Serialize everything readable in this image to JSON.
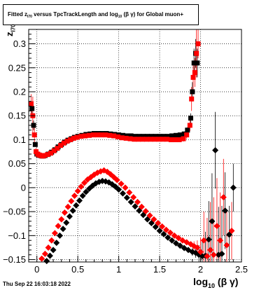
{
  "title": {
    "pre": "Fitted  z",
    "sub1": "I70",
    "mid": "  versus TpcTrackLength and log",
    "sub2": "10",
    "post": " (β  γ) for Global muon+"
  },
  "datestamp": "Thu Sep 22 16:03:18 2022",
  "xlabel": {
    "pre": "log",
    "sub": "10",
    "post": " (β γ)"
  },
  "ylabel": {
    "pre": "z",
    "sub": "I70"
  },
  "chart_data": {
    "type": "scatter",
    "xlim": [
      -0.1,
      2.5
    ],
    "ylim": [
      -0.155,
      0.33
    ],
    "grid": true,
    "xticks": [
      0,
      0.5,
      1,
      1.5,
      2,
      2.5
    ],
    "xtick_labels": [
      "0",
      "0.5",
      "1",
      "1.5",
      "2",
      "2.5"
    ],
    "yticks": [
      -0.15,
      -0.1,
      -0.05,
      0,
      0.05,
      0.1,
      0.15,
      0.2,
      0.25,
      0.3
    ],
    "ytick_labels": [
      "−0.15",
      "−0.1",
      "−0.05",
      "0",
      "0.05",
      "0.1",
      "0.15",
      "0.2",
      "0.25",
      "0.3"
    ],
    "series": [
      {
        "marker": "square",
        "color": "#000000",
        "x": [
          -0.06,
          -0.04,
          -0.02,
          0,
          0.02,
          0.04,
          0.06,
          0.08,
          0.1,
          0.14,
          0.18,
          0.22,
          0.26,
          0.3,
          0.34,
          0.38,
          0.42,
          0.46,
          0.5,
          0.55,
          0.6,
          0.65,
          0.7,
          0.75,
          0.8,
          0.85,
          0.9,
          0.95,
          1.0,
          1.05,
          1.1,
          1.15,
          1.2,
          1.25,
          1.3,
          1.35,
          1.4,
          1.45,
          1.5,
          1.55,
          1.6,
          1.65,
          1.7,
          1.75,
          1.8,
          1.84,
          1.88,
          1.9,
          1.92,
          1.94,
          1.96
        ],
        "y": [
          0.165,
          0.13,
          0.09,
          0.07,
          0.068,
          0.067,
          0.066,
          0.066,
          0.067,
          0.07,
          0.074,
          0.079,
          0.085,
          0.09,
          0.095,
          0.099,
          0.102,
          0.105,
          0.107,
          0.109,
          0.111,
          0.112,
          0.113,
          0.113,
          0.113,
          0.113,
          0.112,
          0.111,
          0.11,
          0.109,
          0.108,
          0.108,
          0.107,
          0.107,
          0.107,
          0.107,
          0.107,
          0.107,
          0.107,
          0.107,
          0.107,
          0.108,
          0.109,
          0.11,
          0.112,
          0.12,
          0.145,
          0.2,
          0.26,
          0.28,
          0.26
        ],
        "err": [
          0.01,
          0.01,
          0.005,
          0.003,
          0.002,
          0.002,
          0.002,
          0.002,
          0.002,
          0.002,
          0.002,
          0.002,
          0.002,
          0.002,
          0.002,
          0.002,
          0.002,
          0.002,
          0.002,
          0.002,
          0.002,
          0.002,
          0.002,
          0.002,
          0.002,
          0.002,
          0.002,
          0.002,
          0.002,
          0.002,
          0.002,
          0.002,
          0.002,
          0.002,
          0.002,
          0.002,
          0.002,
          0.002,
          0.002,
          0.002,
          0.003,
          0.003,
          0.004,
          0.004,
          0.005,
          0.006,
          0.01,
          0.02,
          0.03,
          0.03,
          0.03
        ]
      },
      {
        "marker": "square",
        "color": "#ff0000",
        "x": [
          -0.07,
          -0.05,
          -0.03,
          -0.01,
          0.01,
          0.03,
          0.05,
          0.07,
          0.09,
          0.13,
          0.17,
          0.21,
          0.25,
          0.29,
          0.33,
          0.37,
          0.41,
          0.45,
          0.49,
          0.54,
          0.59,
          0.64,
          0.69,
          0.74,
          0.79,
          0.84,
          0.89,
          0.94,
          0.99,
          1.04,
          1.09,
          1.14,
          1.19,
          1.24,
          1.29,
          1.34,
          1.39,
          1.44,
          1.49,
          1.54,
          1.59,
          1.64,
          1.69,
          1.74,
          1.79,
          1.83,
          1.87,
          1.89,
          1.91,
          1.93,
          1.95,
          1.97
        ],
        "y": [
          0.175,
          0.15,
          0.11,
          0.075,
          0.07,
          0.068,
          0.067,
          0.066,
          0.067,
          0.069,
          0.072,
          0.077,
          0.082,
          0.088,
          0.093,
          0.097,
          0.1,
          0.103,
          0.105,
          0.107,
          0.108,
          0.109,
          0.11,
          0.11,
          0.11,
          0.11,
          0.109,
          0.108,
          0.106,
          0.104,
          0.103,
          0.102,
          0.101,
          0.101,
          0.101,
          0.101,
          0.101,
          0.101,
          0.101,
          0.101,
          0.101,
          0.1,
          0.1,
          0.1,
          0.102,
          0.11,
          0.13,
          0.185,
          0.23,
          0.24,
          0.28,
          0.3
        ],
        "err": [
          0.02,
          0.04,
          0.02,
          0.008,
          0.003,
          0.002,
          0.002,
          0.002,
          0.002,
          0.002,
          0.002,
          0.002,
          0.002,
          0.002,
          0.002,
          0.002,
          0.002,
          0.002,
          0.002,
          0.002,
          0.002,
          0.002,
          0.002,
          0.002,
          0.002,
          0.002,
          0.002,
          0.002,
          0.002,
          0.002,
          0.002,
          0.002,
          0.002,
          0.002,
          0.002,
          0.002,
          0.002,
          0.002,
          0.002,
          0.002,
          0.003,
          0.003,
          0.004,
          0.004,
          0.006,
          0.008,
          0.012,
          0.025,
          0.03,
          0.03,
          0.05,
          0.03
        ]
      },
      {
        "marker": "diamond",
        "color": "#000000",
        "x": [
          0.12,
          0.16,
          0.2,
          0.24,
          0.28,
          0.32,
          0.36,
          0.4,
          0.44,
          0.48,
          0.52,
          0.56,
          0.6,
          0.64,
          0.68,
          0.72,
          0.76,
          0.8,
          0.84,
          0.88,
          0.92,
          0.96,
          1.0,
          1.05,
          1.1,
          1.15,
          1.2,
          1.25,
          1.3,
          1.35,
          1.4,
          1.45,
          1.5,
          1.55,
          1.6,
          1.65,
          1.7,
          1.75,
          1.8,
          1.85,
          1.9,
          1.94,
          1.98,
          2.02,
          2.06,
          2.1,
          2.14,
          2.18,
          2.22,
          2.26,
          2.3,
          2.35,
          2.4
        ],
        "y": [
          -0.153,
          -0.142,
          -0.13,
          -0.115,
          -0.1,
          -0.086,
          -0.073,
          -0.06,
          -0.048,
          -0.037,
          -0.027,
          -0.017,
          -0.009,
          -0.002,
          0.004,
          0.009,
          0.012,
          0.014,
          0.013,
          0.011,
          0.007,
          0.002,
          -0.004,
          -0.012,
          -0.021,
          -0.03,
          -0.039,
          -0.048,
          -0.057,
          -0.066,
          -0.074,
          -0.082,
          -0.09,
          -0.097,
          -0.104,
          -0.11,
          -0.116,
          -0.121,
          -0.126,
          -0.13,
          -0.134,
          -0.136,
          -0.14,
          -0.143,
          -0.142,
          -0.108,
          -0.07,
          0.078,
          -0.14,
          -0.138,
          -0.048,
          -0.098,
          0.0
        ],
        "err": [
          0.004,
          0.003,
          0.002,
          0.002,
          0.002,
          0.002,
          0.002,
          0.002,
          0.002,
          0.002,
          0.002,
          0.002,
          0.002,
          0.002,
          0.002,
          0.002,
          0.002,
          0.002,
          0.002,
          0.002,
          0.002,
          0.002,
          0.002,
          0.002,
          0.002,
          0.002,
          0.002,
          0.002,
          0.002,
          0.002,
          0.002,
          0.002,
          0.002,
          0.002,
          0.003,
          0.003,
          0.003,
          0.004,
          0.004,
          0.006,
          0.008,
          0.01,
          0.02,
          0.03,
          0.05,
          0.08,
          0.1,
          0.08,
          0.1,
          0.1,
          0.08,
          0.06,
          0.05
        ]
      },
      {
        "marker": "diamond",
        "color": "#ff0000",
        "x": [
          0.06,
          0.1,
          0.14,
          0.18,
          0.22,
          0.26,
          0.3,
          0.34,
          0.38,
          0.42,
          0.46,
          0.5,
          0.54,
          0.58,
          0.62,
          0.66,
          0.7,
          0.74,
          0.78,
          0.82,
          0.86,
          0.9,
          0.94,
          0.98,
          1.03,
          1.08,
          1.13,
          1.18,
          1.23,
          1.28,
          1.33,
          1.38,
          1.43,
          1.48,
          1.53,
          1.58,
          1.63,
          1.68,
          1.73,
          1.78,
          1.83,
          1.88,
          1.92,
          1.96,
          2.0,
          2.04,
          2.08,
          2.12,
          2.16,
          2.2,
          2.24,
          2.28,
          2.32,
          2.38
        ],
        "y": [
          -0.148,
          -0.138,
          -0.125,
          -0.11,
          -0.095,
          -0.08,
          -0.066,
          -0.052,
          -0.04,
          -0.028,
          -0.017,
          -0.007,
          0.002,
          0.01,
          0.017,
          0.022,
          0.027,
          0.031,
          0.034,
          0.036,
          0.033,
          0.028,
          0.022,
          0.016,
          0.008,
          0.0,
          -0.01,
          -0.02,
          -0.03,
          -0.04,
          -0.049,
          -0.058,
          -0.066,
          -0.074,
          -0.081,
          -0.088,
          -0.094,
          -0.1,
          -0.105,
          -0.11,
          -0.114,
          -0.118,
          -0.122,
          -0.125,
          -0.134,
          -0.11,
          -0.143,
          -0.13,
          -0.14,
          -0.08,
          -0.11,
          -0.02,
          -0.12,
          -0.09
        ],
        "err": [
          0.005,
          0.003,
          0.002,
          0.002,
          0.002,
          0.002,
          0.002,
          0.002,
          0.002,
          0.002,
          0.002,
          0.002,
          0.002,
          0.002,
          0.002,
          0.002,
          0.002,
          0.002,
          0.002,
          0.002,
          0.002,
          0.002,
          0.002,
          0.002,
          0.002,
          0.002,
          0.002,
          0.002,
          0.002,
          0.002,
          0.002,
          0.002,
          0.002,
          0.002,
          0.002,
          0.003,
          0.003,
          0.003,
          0.004,
          0.004,
          0.005,
          0.006,
          0.01,
          0.015,
          0.03,
          0.06,
          0.08,
          0.1,
          0.12,
          0.1,
          0.1,
          0.08,
          0.07,
          0.06
        ]
      }
    ]
  }
}
